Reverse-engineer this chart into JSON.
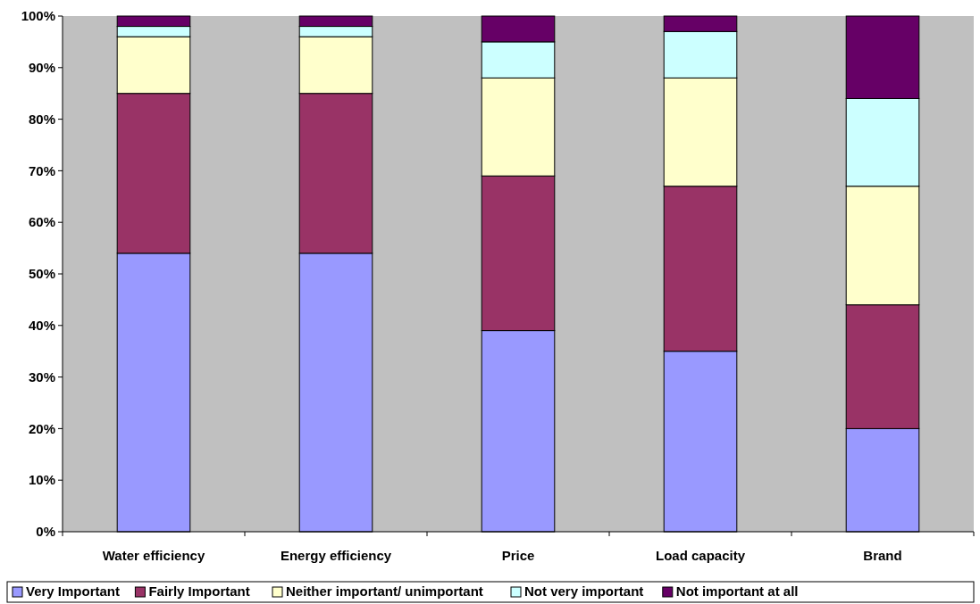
{
  "chart_data": {
    "type": "bar",
    "stacked": true,
    "categories": [
      "Water efficiency",
      "Energy efficiency",
      "Price",
      "Load capacity",
      "Brand"
    ],
    "series": [
      {
        "name": "Very Important",
        "color": "#9999ff",
        "values": [
          54,
          54,
          39,
          35,
          20
        ]
      },
      {
        "name": "Fairly Important",
        "color": "#993366",
        "values": [
          31,
          31,
          30,
          32,
          24
        ]
      },
      {
        "name": "Neither important/ unimportant",
        "color": "#ffffcc",
        "values": [
          11,
          11,
          19,
          21,
          23
        ]
      },
      {
        "name": "Not very important",
        "color": "#ccffff",
        "values": [
          2,
          2,
          7,
          9,
          17
        ]
      },
      {
        "name": "Not important at all",
        "color": "#660066",
        "values": [
          2,
          2,
          5,
          3,
          16
        ]
      }
    ],
    "ylim": [
      0,
      100
    ],
    "yticks": [
      {
        "value": 0,
        "label": "0%"
      },
      {
        "value": 10,
        "label": "10%"
      },
      {
        "value": 20,
        "label": "20%"
      },
      {
        "value": 30,
        "label": "30%"
      },
      {
        "value": 40,
        "label": "40%"
      },
      {
        "value": 50,
        "label": "50%"
      },
      {
        "value": 60,
        "label": "60%"
      },
      {
        "value": 70,
        "label": "70%"
      },
      {
        "value": 80,
        "label": "80%"
      },
      {
        "value": 90,
        "label": "90%"
      },
      {
        "value": 100,
        "label": "100%"
      }
    ],
    "legend": "bottom"
  }
}
